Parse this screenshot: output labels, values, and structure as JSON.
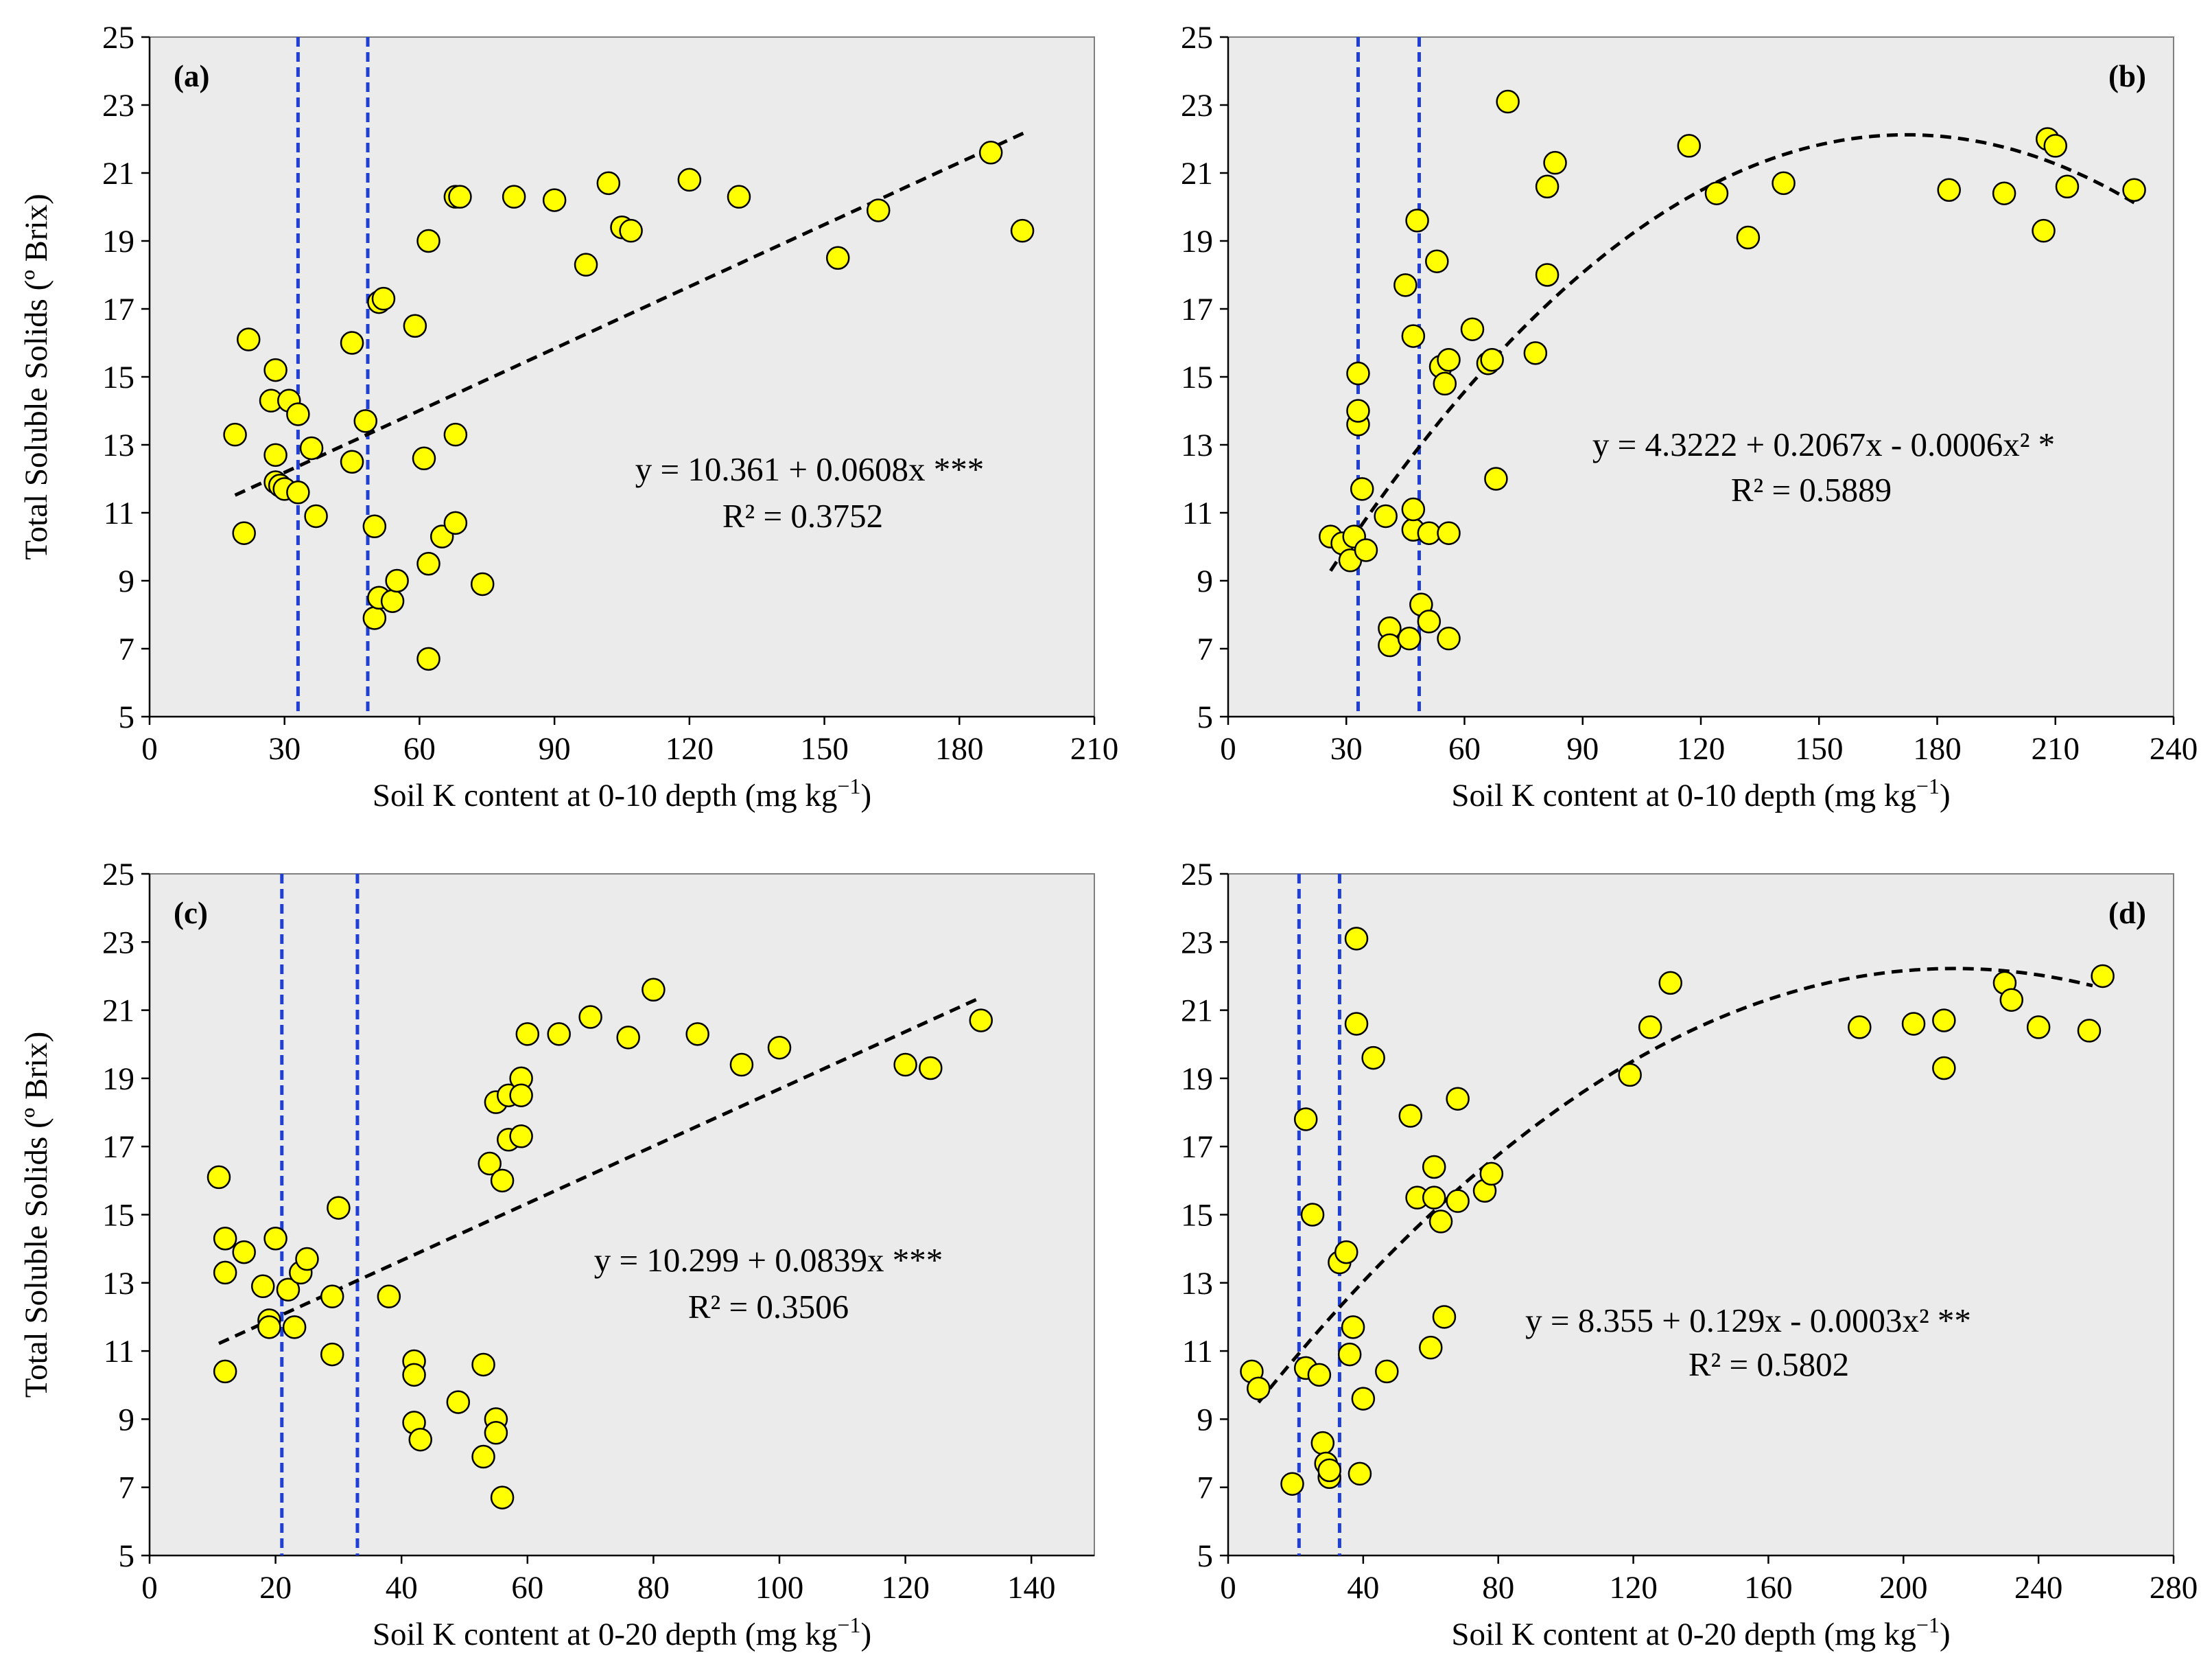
{
  "chart_data": [
    {
      "type": "scatter",
      "panel_label": "(a)",
      "xlabel": "Soil K content at 0-10 depth (mg kg",
      "xlabel_sup": "−1",
      "xlabel_end": ")",
      "ylabel": "Total Soluble Solids (º Brix)",
      "xlim": [
        0,
        210
      ],
      "ylim": [
        5,
        25
      ],
      "xticks": [
        0,
        30,
        60,
        90,
        120,
        150,
        180,
        210
      ],
      "yticks": [
        5,
        7,
        9,
        11,
        13,
        15,
        17,
        19,
        21,
        23,
        25
      ],
      "vlines": [
        33,
        48.5
      ],
      "fit": {
        "type": "linear",
        "coef": [
          10.361,
          0.0608
        ],
        "x_range": [
          19,
          195
        ]
      },
      "equation": "y = 10.361 + 0.0608x ***",
      "r2": "R² = 0.3752",
      "x": [
        19,
        21,
        22,
        27,
        28,
        28,
        28,
        29,
        30,
        31,
        33,
        33,
        36,
        37,
        45,
        45,
        48,
        50,
        50,
        51,
        51,
        52,
        54,
        55,
        59,
        61,
        62,
        62,
        62,
        65,
        68,
        68,
        68,
        69,
        74,
        81,
        90,
        97,
        102,
        105,
        107,
        120,
        131,
        153,
        162,
        187,
        194
      ],
      "y": [
        13.3,
        10.4,
        16.1,
        14.3,
        11.9,
        12.7,
        15.2,
        11.8,
        11.7,
        14.3,
        13.9,
        11.6,
        12.9,
        10.9,
        16.0,
        12.5,
        13.7,
        10.6,
        7.9,
        8.5,
        17.2,
        17.3,
        8.4,
        9.0,
        16.5,
        12.6,
        19.0,
        9.5,
        6.7,
        10.3,
        13.3,
        10.7,
        20.3,
        20.3,
        8.9,
        20.3,
        20.2,
        18.3,
        20.7,
        19.4,
        19.3,
        20.8,
        20.3,
        18.5,
        19.9,
        21.6,
        19.3
      ]
    },
    {
      "type": "scatter",
      "panel_label": "(b)",
      "xlabel": "Soil K content at 0-10 depth (mg kg",
      "xlabel_sup": "−1",
      "xlabel_end": ")",
      "ylabel": "",
      "xlim": [
        0,
        240
      ],
      "ylim": [
        5,
        25
      ],
      "xticks": [
        0,
        30,
        60,
        90,
        120,
        150,
        180,
        210,
        240
      ],
      "yticks": [
        5,
        7,
        9,
        11,
        13,
        15,
        17,
        19,
        21,
        23,
        25
      ],
      "vlines": [
        33,
        48.5
      ],
      "fit": {
        "type": "quadratic",
        "coef": [
          4.3222,
          0.2067,
          -0.0006
        ],
        "x_range": [
          26,
          230
        ]
      },
      "equation": "y = 4.3222 + 0.2067x - 0.0006x² *",
      "r2": "R² = 0.5889",
      "x": [
        26,
        29,
        31,
        32,
        33,
        33,
        33,
        34,
        35,
        40,
        41,
        41,
        45,
        46,
        47,
        47,
        47,
        48,
        49,
        51,
        51,
        53,
        54,
        55,
        56,
        56,
        56,
        62,
        66,
        67,
        68,
        71,
        78,
        81,
        81,
        83,
        117,
        124,
        132,
        141,
        183,
        197,
        207,
        208,
        210,
        213,
        230
      ],
      "y": [
        10.3,
        10.1,
        9.6,
        10.3,
        15.1,
        13.6,
        14.0,
        11.7,
        9.9,
        10.9,
        7.6,
        7.1,
        17.7,
        7.3,
        16.2,
        10.5,
        11.1,
        19.6,
        8.3,
        7.8,
        10.4,
        18.4,
        15.3,
        14.8,
        7.3,
        10.4,
        15.5,
        16.4,
        15.4,
        15.5,
        12.0,
        23.1,
        15.7,
        20.6,
        18.0,
        21.3,
        21.8,
        20.4,
        19.1,
        20.7,
        20.5,
        20.4,
        19.3,
        22.0,
        21.8,
        20.6,
        20.5
      ]
    },
    {
      "type": "scatter",
      "panel_label": "(c)",
      "xlabel": "Soil K content at 0-20 depth (mg kg",
      "xlabel_sup": "−1",
      "xlabel_end": ")",
      "ylabel": "Total Soluble Solids (º Brix)",
      "xlim": [
        0,
        150
      ],
      "ylim": [
        5,
        25
      ],
      "xticks": [
        0,
        20,
        40,
        60,
        80,
        100,
        120,
        140
      ],
      "yticks": [
        5,
        7,
        9,
        11,
        13,
        15,
        17,
        19,
        21,
        23,
        25
      ],
      "vlines": [
        21,
        33
      ],
      "fit": {
        "type": "linear",
        "coef": [
          10.299,
          0.0839
        ],
        "x_range": [
          11,
          132
        ]
      },
      "equation": "y = 10.299 + 0.0839x ***",
      "r2": "R² = 0.3506",
      "x": [
        11,
        12,
        12,
        12,
        15,
        18,
        19,
        19,
        20,
        22,
        23,
        24,
        25,
        29,
        29,
        30,
        38,
        42,
        42,
        42,
        43,
        49,
        53,
        53,
        54,
        55,
        55,
        55,
        56,
        56,
        57,
        57,
        59,
        59,
        59,
        60,
        65,
        70,
        76,
        80,
        87,
        94,
        100,
        120,
        124,
        132
      ],
      "y": [
        16.1,
        14.3,
        13.3,
        10.4,
        13.9,
        12.9,
        11.9,
        11.7,
        14.3,
        12.8,
        11.7,
        13.3,
        13.7,
        12.6,
        10.9,
        15.2,
        12.6,
        10.7,
        10.3,
        8.9,
        8.4,
        9.5,
        7.9,
        10.6,
        16.5,
        9.0,
        18.3,
        8.6,
        16.0,
        6.7,
        17.2,
        18.5,
        17.3,
        19.0,
        18.5,
        20.3,
        20.3,
        20.8,
        20.2,
        21.6,
        20.3,
        19.4,
        19.9,
        19.4,
        19.3,
        20.7
      ]
    },
    {
      "type": "scatter",
      "panel_label": "(d)",
      "xlabel": "Soil K content at 0-20 depth (mg kg",
      "xlabel_sup": "−1",
      "xlabel_end": ")",
      "ylabel": "",
      "xlim": [
        0,
        280
      ],
      "ylim": [
        5,
        25
      ],
      "xticks": [
        0,
        40,
        80,
        120,
        160,
        200,
        240,
        280
      ],
      "yticks": [
        5,
        7,
        9,
        11,
        13,
        15,
        17,
        19,
        21,
        23,
        25
      ],
      "vlines": [
        21,
        33
      ],
      "fit": {
        "type": "quadratic",
        "coef": [
          8.355,
          0.129,
          -0.0003
        ],
        "x_range": [
          9,
          256
        ]
      },
      "equation": "y = 8.355 + 0.129x - 0.0003x² **",
      "r2": "R² = 0.5802",
      "x": [
        7,
        9,
        19,
        23,
        23,
        25,
        27,
        28,
        29,
        30,
        30,
        33,
        35,
        36,
        37,
        38,
        38,
        39,
        40,
        43,
        47,
        54,
        56,
        60,
        61,
        61,
        63,
        64,
        68,
        68,
        76,
        78,
        119,
        125,
        131,
        187,
        203,
        212,
        212,
        230,
        232,
        240,
        255,
        259
      ],
      "y": [
        10.4,
        9.9,
        7.1,
        17.8,
        10.5,
        15.0,
        10.3,
        8.3,
        7.7,
        7.3,
        7.5,
        13.6,
        13.9,
        10.9,
        11.7,
        23.1,
        20.6,
        7.4,
        9.6,
        19.6,
        10.4,
        17.9,
        15.5,
        11.1,
        15.5,
        16.4,
        14.8,
        12.0,
        18.4,
        15.4,
        15.7,
        16.2,
        19.1,
        20.5,
        21.8,
        20.5,
        20.6,
        20.7,
        19.3,
        21.8,
        21.3,
        20.5,
        20.4,
        22.0
      ]
    }
  ]
}
